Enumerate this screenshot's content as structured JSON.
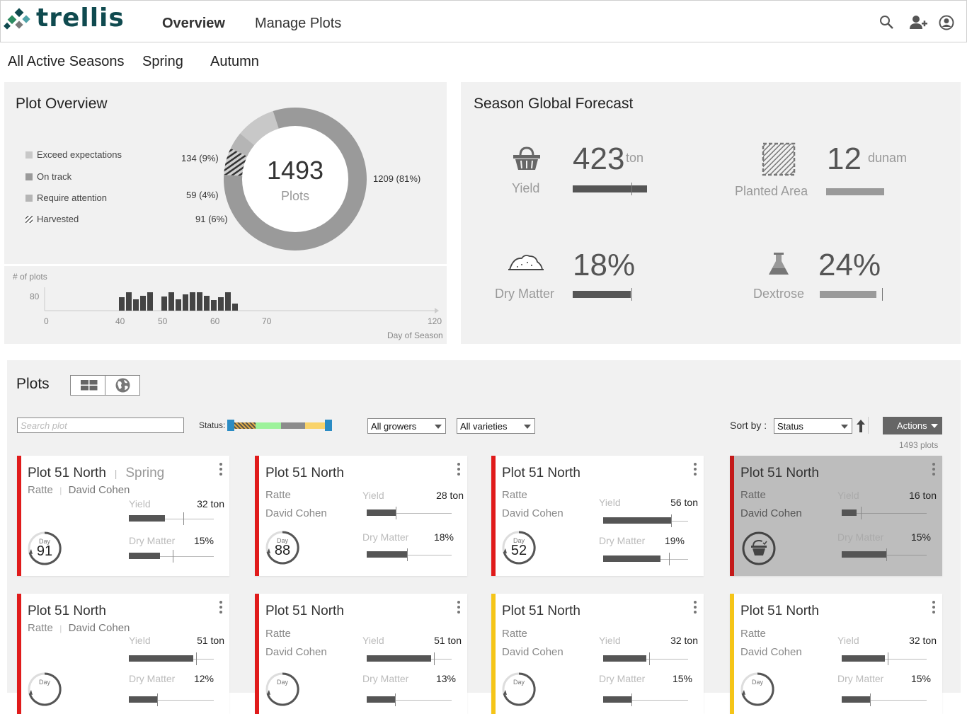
{
  "header": {
    "logo": "trellis",
    "nav": [
      "Overview",
      "Manage Plots"
    ]
  },
  "seasons": [
    "All Active Seasons",
    "Spring",
    "Autumn"
  ],
  "plot_overview": {
    "title": "Plot Overview",
    "total": "1493",
    "total_label": "Plots",
    "legend": [
      {
        "label": "Exceed expectations",
        "value": "134 (9%)",
        "color": "#c8c8c8"
      },
      {
        "label": "On track",
        "value": "1209 (81%)",
        "color": "#9a9a9a"
      },
      {
        "label": "Require attention",
        "value": "59 (4%)",
        "color": "#b5b5b5"
      },
      {
        "label": "Harvested",
        "value": "91 (6%)",
        "color": "#555555"
      }
    ],
    "donut_values": {
      "exceed": 134,
      "on_track": 1209,
      "attention": 59,
      "harvested": 91
    },
    "hist_ylabel": "# of plots",
    "hist_ytick": "80",
    "hist_xticks": [
      "0",
      "40",
      "50",
      "60",
      "70",
      "120"
    ],
    "hist_xlabel": "Day of Season"
  },
  "forecast": {
    "title": "Season Global Forecast",
    "items": [
      {
        "label": "Yield",
        "value": "423",
        "unit": "ton",
        "progress": 1.0
      },
      {
        "label": "Planted Area",
        "value": "12",
        "unit": "dunam",
        "progress": 1.0
      },
      {
        "label": "Dry Matter",
        "value": "18%",
        "unit": "",
        "progress": 0.95
      },
      {
        "label": "Dextrose",
        "value": "24%",
        "unit": "",
        "progress": 0.9
      }
    ]
  },
  "plots": {
    "title": "Plots",
    "search_placeholder": "Search plot",
    "status_label": "Status:",
    "growers": "All growers",
    "varieties": "All varieties",
    "sort_label": "Sort by :",
    "sort_value": "Status",
    "actions": "Actions",
    "count": "1493 plots",
    "yield_label": "Yield",
    "dm_label": "Dry Matter",
    "day_label": "Day",
    "cards": [
      {
        "name": "Plot 51 North",
        "season": "Spring",
        "variety": "Ratte",
        "grower": "David Cohen",
        "yield": "32 ton",
        "dm": "15%",
        "day": "91",
        "stripe": "#e01b1b"
      },
      {
        "name": "Plot 51 North",
        "season": "",
        "variety": "Ratte",
        "grower": "David Cohen",
        "yield": "28 ton",
        "dm": "18%",
        "day": "88",
        "stripe": "#e01b1b"
      },
      {
        "name": "Plot 51 North",
        "season": "",
        "variety": "Ratte",
        "grower": "David Cohen",
        "yield": "56 ton",
        "dm": "19%",
        "day": "52",
        "stripe": "#e01b1b"
      },
      {
        "name": "Plot 51 North",
        "season": "",
        "variety": "Ratte",
        "grower": "David Cohen",
        "yield": "16  ton",
        "dm": "15%",
        "day": "",
        "stripe": "#c41a1a"
      },
      {
        "name": "Plot 51 North",
        "season": "",
        "variety": "Ratte",
        "grower": "David Cohen",
        "yield": "51 ton",
        "dm": "12%",
        "day": "",
        "stripe": "#e01b1b"
      },
      {
        "name": "Plot 51 North",
        "season": "",
        "variety": "Ratte",
        "grower": "David Cohen",
        "yield": "51 ton",
        "dm": "13%",
        "day": "",
        "stripe": "#e01b1b"
      },
      {
        "name": "Plot 51 North",
        "season": "",
        "variety": "Ratte",
        "grower": "David Cohen",
        "yield": "32 ton",
        "dm": "15%",
        "day": "",
        "stripe": "#f5c518"
      },
      {
        "name": "Plot 51 North",
        "season": "",
        "variety": "Ratte",
        "grower": "David Cohen",
        "yield": "32 ton",
        "dm": "15%",
        "day": "",
        "stripe": "#f5c518"
      }
    ]
  }
}
